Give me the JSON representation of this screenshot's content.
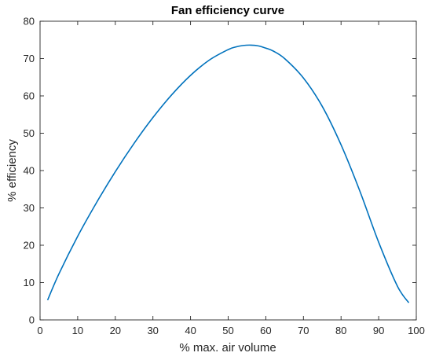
{
  "chart_data": {
    "type": "line",
    "title": "Fan efficiency curve",
    "xlabel": "% max. air volume",
    "ylabel": "% efficiency",
    "xlim": [
      0,
      100
    ],
    "ylim": [
      0,
      80
    ],
    "xticks": [
      0,
      10,
      20,
      30,
      40,
      50,
      60,
      70,
      80,
      90,
      100
    ],
    "yticks": [
      0,
      10,
      20,
      30,
      40,
      50,
      60,
      70,
      80
    ],
    "grid": false,
    "line_color": "#0072bd",
    "series": [
      {
        "x": [
          2,
          5,
          10,
          15,
          20,
          25,
          30,
          35,
          40,
          45,
          50,
          52,
          54,
          56,
          58,
          60,
          62,
          65,
          70,
          75,
          80,
          85,
          90,
          95,
          98
        ],
        "y": [
          5.3,
          12.3,
          22.4,
          31.4,
          39.7,
          47.3,
          54.2,
          60.3,
          65.5,
          69.6,
          72.4,
          73.1,
          73.5,
          73.6,
          73.4,
          72.8,
          72.0,
          70.0,
          64.8,
          57.2,
          46.9,
          34.5,
          20.8,
          9.0,
          4.6
        ]
      }
    ]
  }
}
